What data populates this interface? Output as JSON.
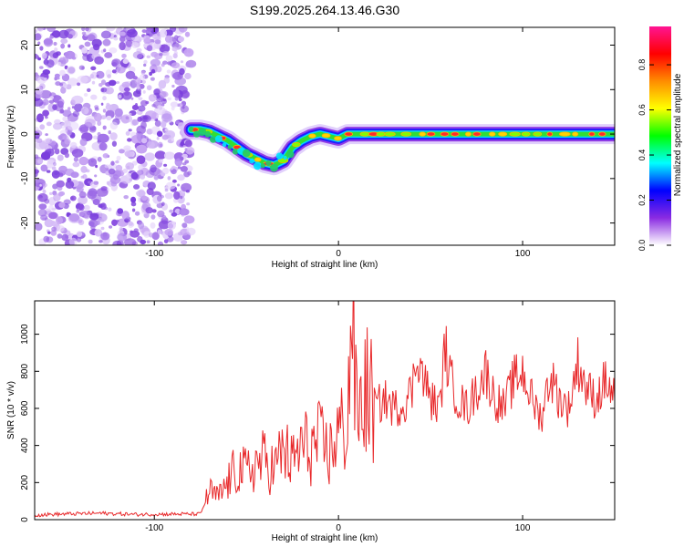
{
  "title": "S199.2025.264.13.46.G30",
  "colors": {
    "snr_line": "#e8282a",
    "axis": "#000000",
    "colorbar_stops": [
      "#ffffff",
      "#8a2be2",
      "#0000ff",
      "#00ffff",
      "#00ff00",
      "#ffff00",
      "#ff8c00",
      "#ff0000",
      "#ff1493"
    ]
  },
  "chart_data": [
    {
      "type": "heatmap",
      "title": "S199.2025.264.13.46.G30",
      "xlabel": "Height of straight line (km)",
      "ylabel": "Frequency (Hz)",
      "xlim": [
        -165,
        150
      ],
      "ylim": [
        -25,
        24
      ],
      "xticks": [
        -100,
        0,
        100
      ],
      "yticks": [
        20,
        10,
        0,
        -10,
        -20
      ],
      "colorbar": {
        "label": "Normalized spectral amplitude",
        "range": [
          0.0,
          0.97
        ],
        "ticks": [
          0.0,
          0.2,
          0.4,
          0.6,
          0.8
        ]
      },
      "noise_region_x": [
        -165,
        -80
      ],
      "ridge": {
        "x": [
          -80,
          -75,
          -70,
          -65,
          -60,
          -55,
          -50,
          -45,
          -40,
          -35,
          -30,
          -25,
          -20,
          -15,
          -10,
          -5,
          0,
          5,
          10,
          20,
          40,
          60,
          80,
          100,
          120,
          140,
          150
        ],
        "y": [
          1,
          1,
          0.5,
          -0.5,
          -1.5,
          -3,
          -4.5,
          -5.5,
          -6.5,
          -7,
          -6,
          -3,
          -1.5,
          -0.5,
          0,
          -0.5,
          -1,
          0,
          0,
          0,
          0,
          0,
          0,
          0,
          0,
          0,
          0
        ]
      }
    },
    {
      "type": "line",
      "xlabel": "Height of straight line (km)",
      "ylabel": "SNR (10 * v/v)",
      "xlim": [
        -165,
        150
      ],
      "ylim": [
        0,
        1180
      ],
      "xticks": [
        -100,
        0,
        100
      ],
      "yticks": [
        0,
        200,
        400,
        600,
        800,
        1000
      ],
      "series": [
        {
          "name": "SNR",
          "x": [
            -165,
            -150,
            -130,
            -110,
            -90,
            -75,
            -70,
            -65,
            -60,
            -55,
            -50,
            -45,
            -40,
            -35,
            -30,
            -25,
            -20,
            -15,
            -10,
            -5,
            0,
            5,
            7,
            10,
            15,
            20,
            25,
            30,
            35,
            40,
            43,
            45,
            50,
            55,
            58,
            60,
            65,
            70,
            75,
            80,
            85,
            90,
            95,
            100,
            105,
            110,
            115,
            120,
            125,
            130,
            135,
            140,
            145,
            150
          ],
          "y": [
            25,
            30,
            35,
            28,
            30,
            30,
            150,
            120,
            200,
            280,
            250,
            300,
            320,
            270,
            380,
            300,
            400,
            380,
            420,
            350,
            480,
            500,
            1180,
            550,
            700,
            600,
            650,
            600,
            620,
            700,
            920,
            800,
            650,
            600,
            940,
            780,
            650,
            600,
            700,
            800,
            650,
            600,
            750,
            800,
            650,
            550,
            780,
            650,
            600,
            850,
            700,
            650,
            750,
            650
          ]
        }
      ]
    }
  ]
}
